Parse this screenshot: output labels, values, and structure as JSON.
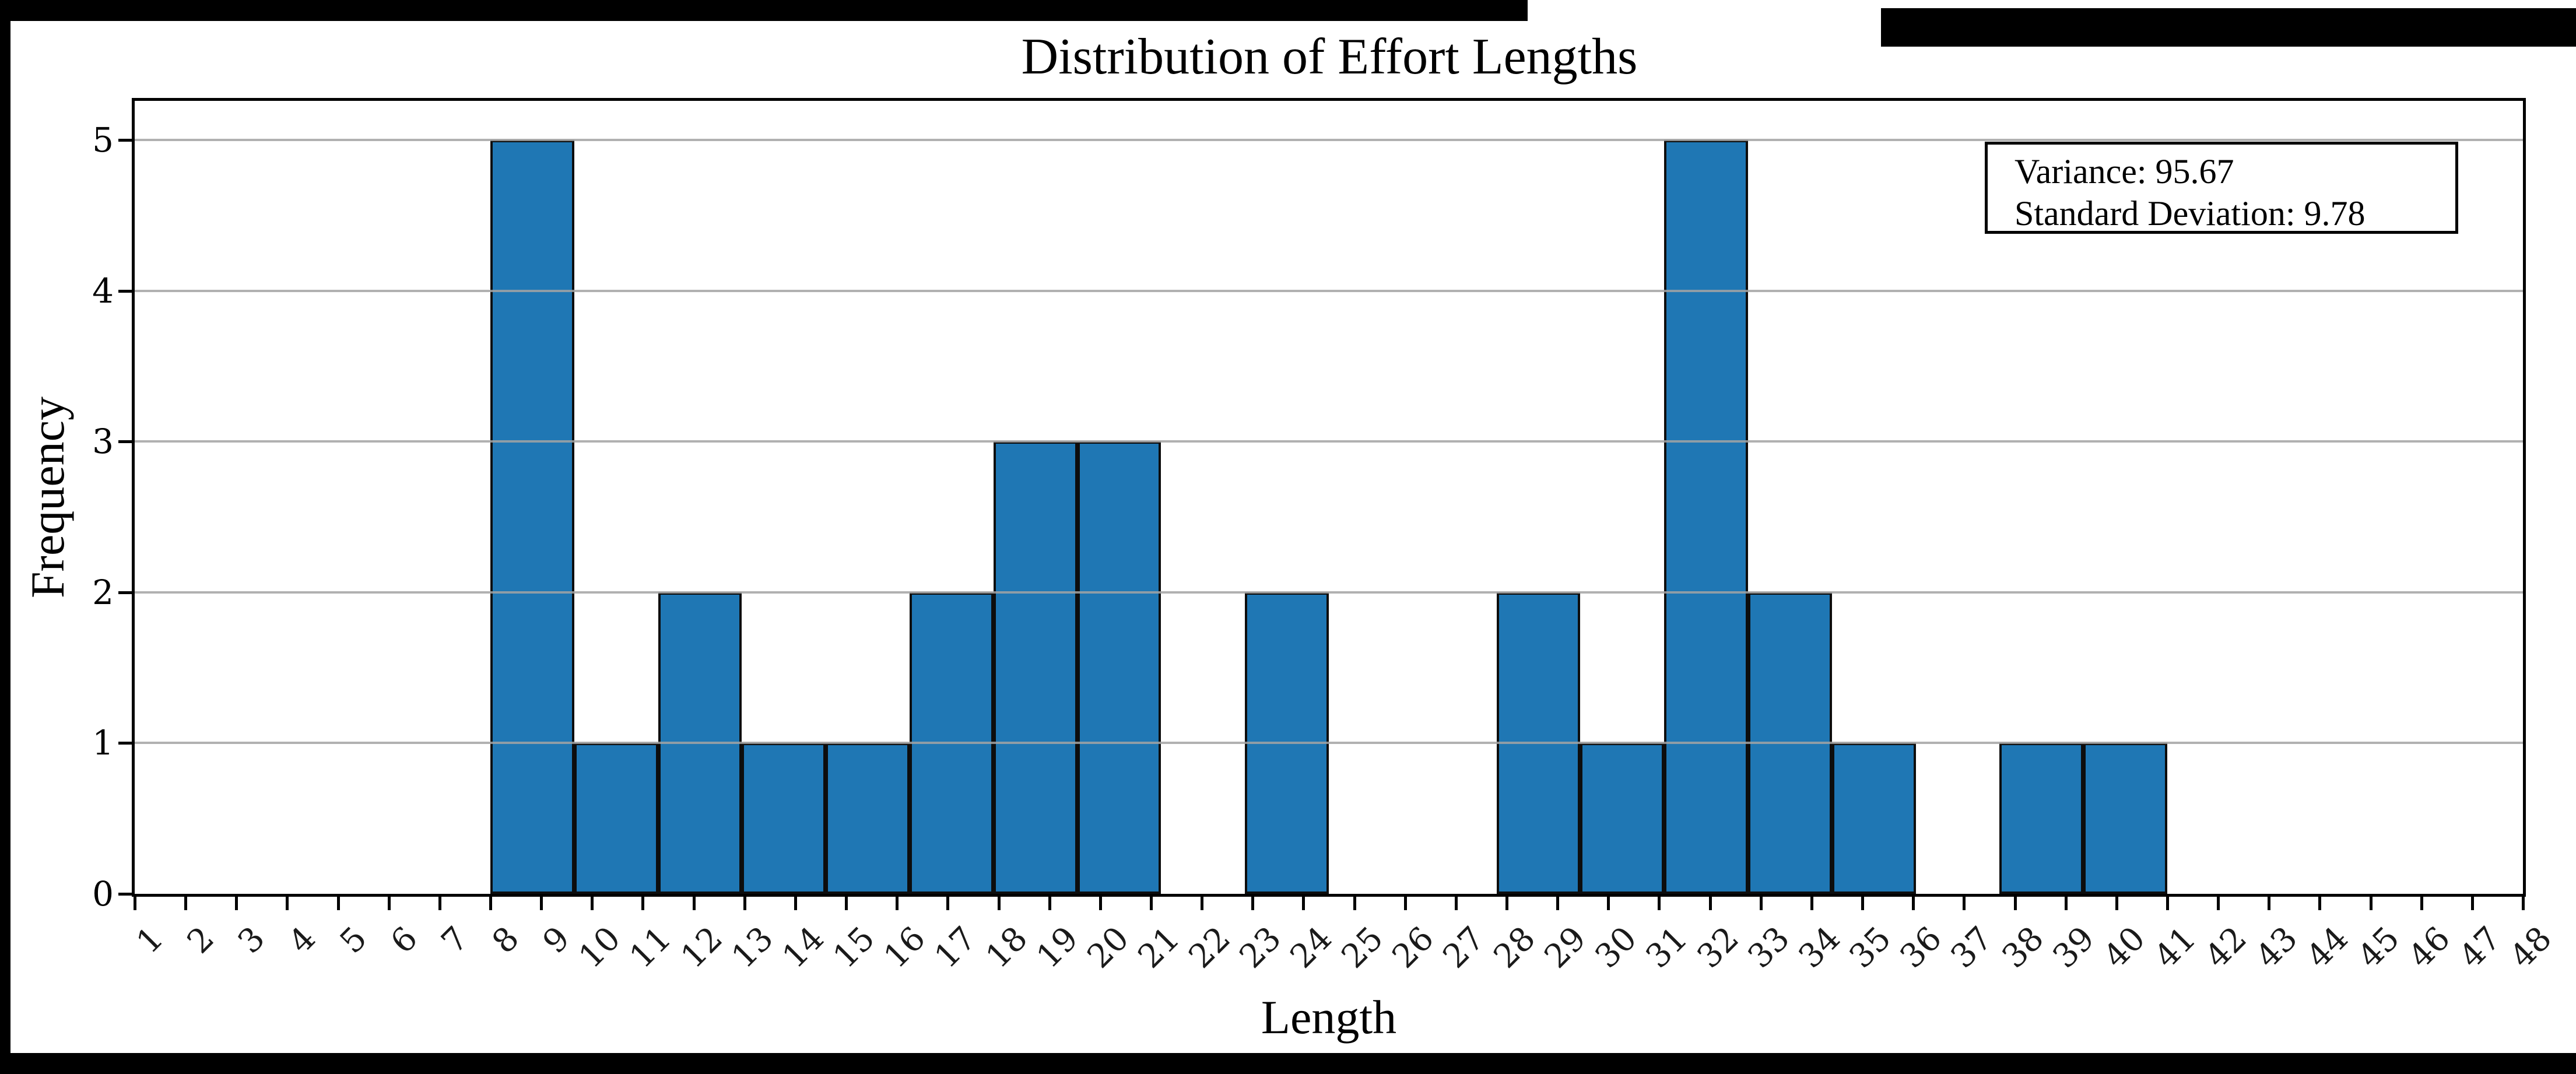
{
  "figure": {
    "title": "Distribution of Effort Lengths",
    "annotation": {
      "line1": "Variance: 95.67",
      "line2": "Standard Deviation: 9.78"
    }
  },
  "chart_data": {
    "type": "bar",
    "subtype": "histogram",
    "title": "Distribution of Effort Lengths",
    "xlabel": "Length",
    "ylabel": "Frequency",
    "bin_edges": [
      8,
      9.65,
      11.3,
      12.95,
      14.6,
      16.25,
      17.9,
      19.55,
      21.2,
      22.85,
      24.5,
      26.15,
      27.8,
      29.45,
      31.1,
      32.75,
      34.4,
      36.05,
      37.7,
      39.35,
      41
    ],
    "counts": [
      5,
      1,
      2,
      1,
      1,
      2,
      3,
      3,
      0,
      2,
      0,
      0,
      2,
      1,
      5,
      2,
      1,
      0,
      1,
      1
    ],
    "n_values": 33,
    "variance": 95.67,
    "std_dev": 9.78,
    "xticks": [
      1,
      2,
      3,
      4,
      5,
      6,
      7,
      8,
      9,
      10,
      11,
      12,
      13,
      14,
      15,
      16,
      17,
      18,
      19,
      20,
      21,
      22,
      23,
      24,
      25,
      26,
      27,
      28,
      29,
      30,
      31,
      32,
      33,
      34,
      35,
      36,
      37,
      38,
      39,
      40,
      41,
      42,
      43,
      44,
      45,
      46,
      47,
      48
    ],
    "yticks": [
      0,
      1,
      2,
      3,
      4,
      5
    ],
    "xlim": [
      1,
      48
    ],
    "ylim": [
      0,
      5.26
    ],
    "grid": "horizontal-over-bars",
    "legend": "none",
    "bar_color": "#1f77b4",
    "bar_edge_color": "#0d0d0d",
    "grid_color": "#a3a3a3"
  }
}
